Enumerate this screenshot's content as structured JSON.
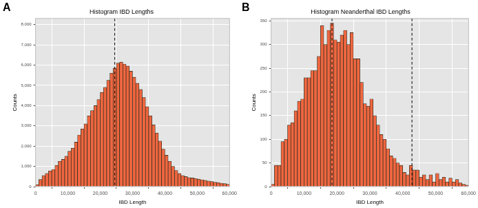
{
  "chart_data": [
    {
      "type": "histogram",
      "panel_label": "A",
      "title": "Histogram IBD Lengths",
      "x_label": "IBD Length",
      "y_label": "Counts",
      "bins": [
        0,
        1000,
        2000,
        3000,
        4000,
        5000,
        6000,
        7000,
        8000,
        9000,
        10000,
        11000,
        12000,
        13000,
        14000,
        15000,
        16000,
        17000,
        18000,
        19000,
        20000,
        21000,
        22000,
        23000,
        24000,
        25000,
        26000,
        27000,
        28000,
        29000,
        30000,
        31000,
        32000,
        33000,
        34000,
        35000,
        36000,
        37000,
        38000,
        39000,
        40000,
        41000,
        42000,
        43000,
        44000,
        45000,
        46000,
        47000,
        48000,
        49000,
        50000,
        51000,
        52000,
        53000,
        54000,
        55000,
        56000,
        57000,
        58000,
        59000,
        60000
      ],
      "values": [
        100,
        350,
        550,
        650,
        780,
        850,
        1050,
        1250,
        1350,
        1500,
        1750,
        1900,
        2200,
        2550,
        2850,
        3100,
        3500,
        3750,
        4000,
        4300,
        4650,
        4900,
        5250,
        5600,
        5850,
        6100,
        6150,
        6050,
        5950,
        5700,
        5400,
        5100,
        4800,
        4400,
        3950,
        3500,
        3050,
        2650,
        2250,
        1850,
        1550,
        1250,
        1000,
        800,
        650,
        550,
        500,
        450,
        430,
        400,
        370,
        340,
        310,
        280,
        250,
        220,
        200,
        170,
        150,
        120
      ],
      "color": "#ef6640",
      "xlim": [
        0,
        60000
      ],
      "xticks": [
        0,
        10000,
        20000,
        30000,
        40000,
        50000,
        60000
      ],
      "ylim": [
        0,
        8300
      ],
      "yticks": [
        0,
        1000,
        2000,
        3000,
        4000,
        5000,
        6000,
        7000,
        8000
      ],
      "grid": true,
      "vlines": [
        24500
      ]
    },
    {
      "type": "histogram",
      "panel_label": "B",
      "title": "Histogram Neanderthal IBD Lengths",
      "x_label": "IBD Length",
      "y_label": "Counts",
      "bins": [
        0,
        1000,
        2000,
        3000,
        4000,
        5000,
        6000,
        7000,
        8000,
        9000,
        10000,
        11000,
        12000,
        13000,
        14000,
        15000,
        16000,
        17000,
        18000,
        19000,
        20000,
        21000,
        22000,
        23000,
        24000,
        25000,
        26000,
        27000,
        28000,
        29000,
        30000,
        31000,
        32000,
        33000,
        34000,
        35000,
        36000,
        37000,
        38000,
        39000,
        40000,
        41000,
        42000,
        43000,
        44000,
        45000,
        46000,
        47000,
        48000,
        49000,
        50000,
        51000,
        52000,
        53000,
        54000,
        55000,
        56000,
        57000,
        58000,
        59000,
        60000
      ],
      "values": [
        5,
        45,
        45,
        95,
        100,
        130,
        135,
        160,
        180,
        185,
        230,
        230,
        245,
        245,
        275,
        340,
        300,
        330,
        345,
        310,
        305,
        320,
        330,
        300,
        325,
        270,
        270,
        220,
        175,
        170,
        185,
        150,
        130,
        110,
        100,
        80,
        65,
        60,
        50,
        45,
        30,
        25,
        45,
        35,
        35,
        20,
        25,
        15,
        25,
        10,
        28,
        15,
        20,
        10,
        18,
        10,
        15,
        8,
        5,
        3
      ],
      "color": "#ef6640",
      "xlim": [
        0,
        60000
      ],
      "xticks": [
        0,
        10000,
        20000,
        30000,
        40000,
        50000,
        60000
      ],
      "ylim": [
        0,
        355
      ],
      "yticks": [
        0,
        50,
        100,
        150,
        200,
        250,
        300,
        350
      ],
      "grid": true,
      "vlines": [
        18500,
        42800
      ]
    }
  ]
}
